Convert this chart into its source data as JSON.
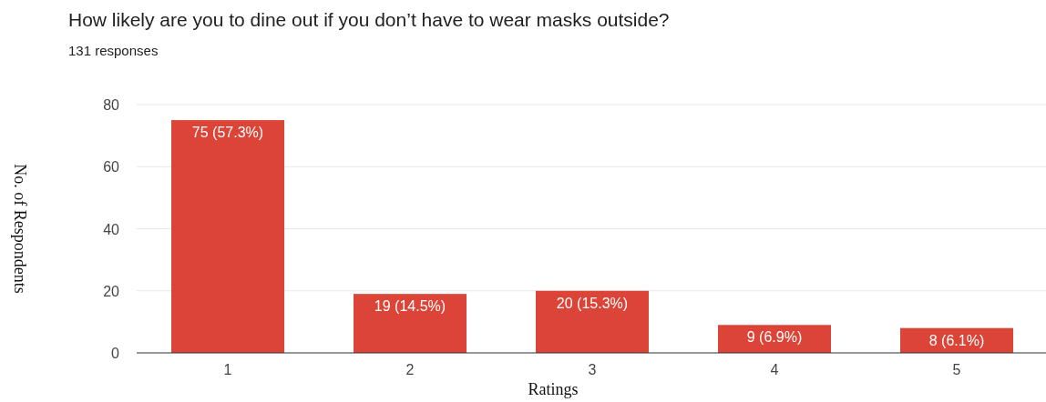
{
  "chart_data": {
    "type": "bar",
    "title": "How likely are you to dine out if you don’t have to wear masks outside?",
    "subtitle": "131 responses",
    "xlabel": "Ratings",
    "ylabel": "No. of Respondents",
    "categories": [
      "1",
      "2",
      "3",
      "4",
      "5"
    ],
    "values": [
      75,
      19,
      20,
      9,
      8
    ],
    "value_labels": [
      "75 (57.3%)",
      "19 (14.5%)",
      "20 (15.3%)",
      "9 (6.9%)",
      "8 (6.1%)"
    ],
    "color": "#db4437",
    "ylim": [
      0,
      80
    ],
    "yticks": [
      0,
      20,
      40,
      60,
      80
    ],
    "grid": "y"
  }
}
